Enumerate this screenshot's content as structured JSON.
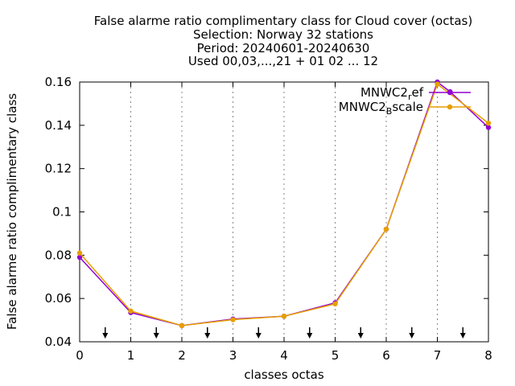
{
  "chart_data": {
    "type": "line",
    "title_lines": [
      "False alarme ratio complimentary class  for Cloud cover (octas)",
      "Selection: Norway     32 stations",
      "Period: 20240601-20240630",
      "Used 00,03,...,21 + 01 02 ... 12"
    ],
    "xlabel": "classes octas",
    "ylabel": "False alarme ratio complimentary class",
    "xlim": [
      0,
      8
    ],
    "ylim": [
      0.04,
      0.16
    ],
    "xticks": [
      0,
      1,
      2,
      3,
      4,
      5,
      6,
      7,
      8
    ],
    "yticks": [
      0.04,
      0.06,
      0.08,
      0.1,
      0.12,
      0.14,
      0.16
    ],
    "ytick_labels": [
      "0.04",
      "0.06",
      "0.08",
      "0.1",
      "0.12",
      "0.14",
      "0.16"
    ],
    "grid": "vertical dotted",
    "legend_position": "top-right",
    "series": [
      {
        "name_main": "MNWC2",
        "name_sub": "r",
        "name_tail": "ef",
        "color": "#9400d3",
        "x": [
          0,
          1,
          2,
          3,
          4,
          5,
          6,
          7,
          7.25,
          8
        ],
        "y": [
          0.079,
          0.0535,
          0.0475,
          0.0505,
          0.0518,
          0.058,
          0.092,
          0.16,
          0.1555,
          0.139
        ]
      },
      {
        "name_main": "MNWC2",
        "name_sub": "B",
        "name_tail": "scale",
        "color": "#e69f00",
        "x": [
          0,
          1,
          2,
          3,
          4,
          5,
          6,
          7,
          8
        ],
        "y": [
          0.081,
          0.0542,
          0.0475,
          0.0502,
          0.0518,
          0.0575,
          0.092,
          0.159,
          0.141
        ]
      }
    ],
    "arrows_x": [
      0.5,
      1.5,
      2.5,
      3.5,
      4.5,
      5.5,
      6.5,
      7.5
    ]
  }
}
